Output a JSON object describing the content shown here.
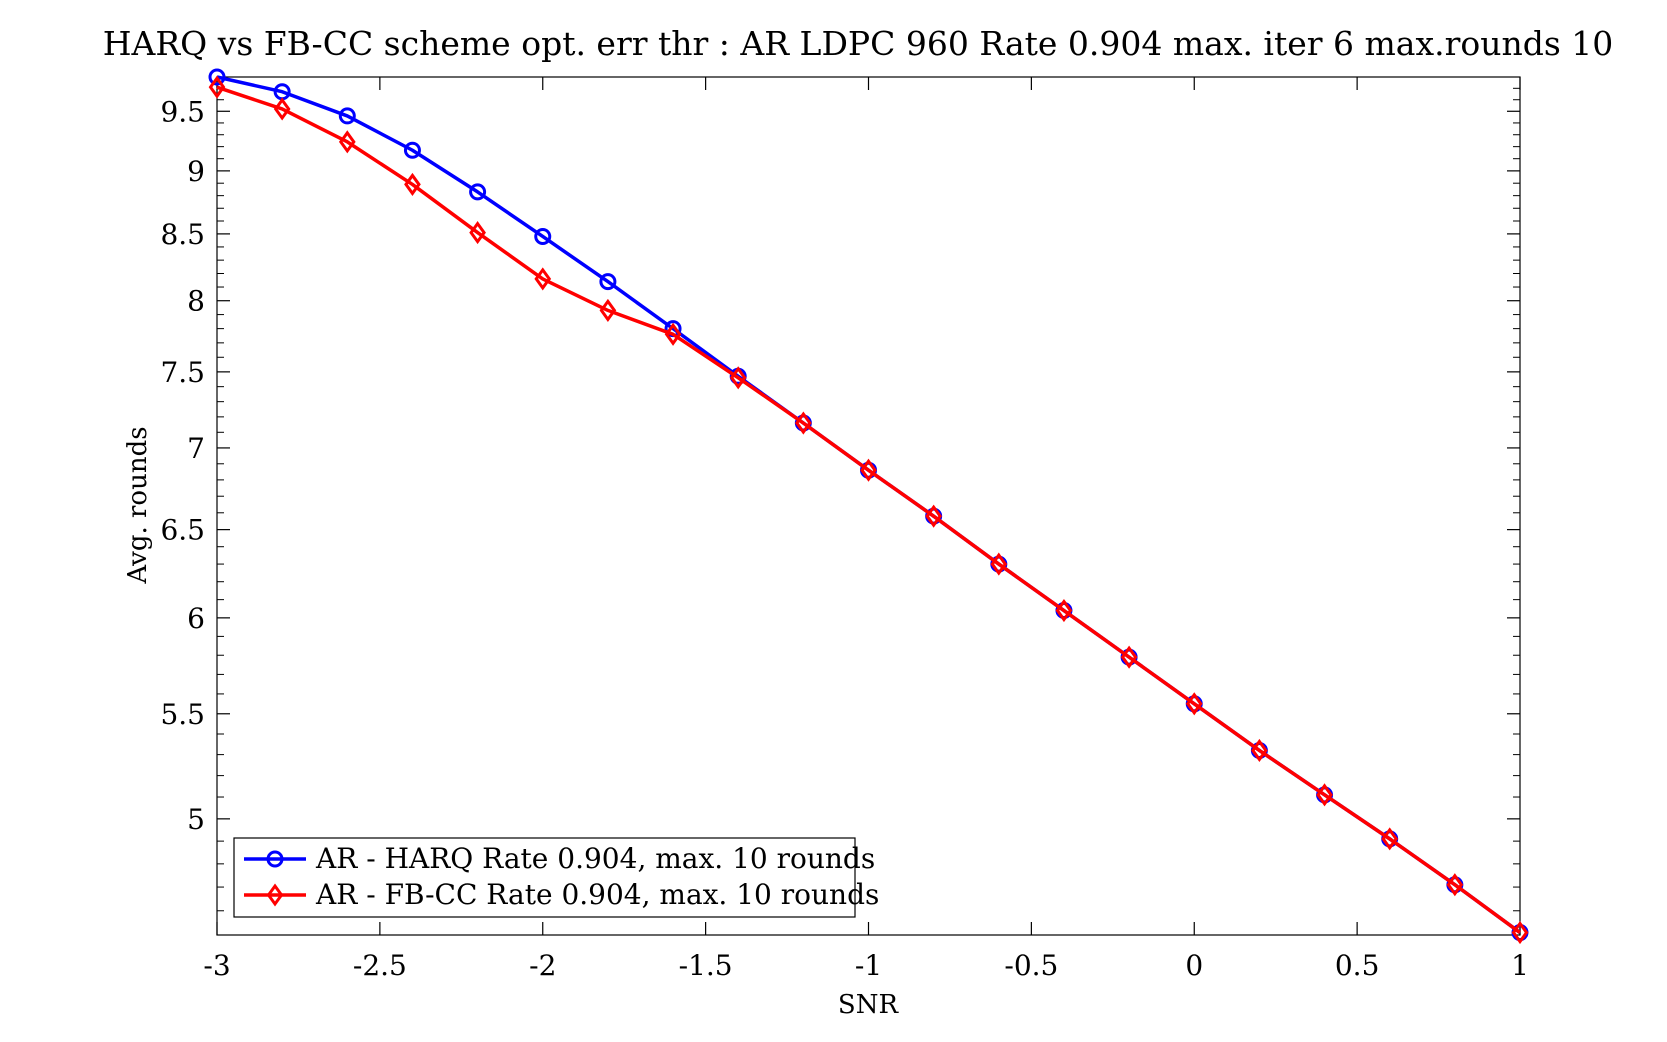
{
  "chart_data": {
    "type": "line",
    "title": "HARQ vs FB-CC scheme opt. err thr : AR LDPC 960 Rate 0.904 max. iter 6 max.rounds 10",
    "xlabel": "SNR",
    "ylabel": "Avg. rounds",
    "xlim": [
      -3,
      1
    ],
    "ylim": [
      4.5,
      9.8
    ],
    "yscale": "log",
    "xticks": [
      -3,
      -2.5,
      -2,
      -1.5,
      -1,
      -0.5,
      0,
      0.5,
      1
    ],
    "xtick_labels": [
      "-3",
      "-2.5",
      "-2",
      "-1.5",
      "-1",
      "-0.5",
      "0",
      "0.5",
      "1"
    ],
    "yticks": [
      5,
      5.5,
      6,
      6.5,
      7,
      7.5,
      8,
      8.5,
      9,
      9.5
    ],
    "ytick_labels": [
      "5",
      "5.5",
      "6",
      "6.5",
      "7",
      "7.5",
      "8",
      "8.5",
      "9",
      "9.5"
    ],
    "legend_position": "bottom-left",
    "grid": false,
    "x": [
      -3,
      -2.8,
      -2.6,
      -2.4,
      -2.2,
      -2,
      -1.8,
      -1.6,
      -1.4,
      -1.2,
      -1,
      -0.8,
      -0.6,
      -0.4,
      -0.2,
      0,
      0.2,
      0.4,
      0.6,
      0.8,
      1
    ],
    "series": [
      {
        "name": "AR - HARQ Rate 0.904, max. 10 rounds",
        "color": "#0000ff",
        "marker": "circle",
        "values": [
          9.8,
          9.67,
          9.46,
          9.17,
          8.83,
          8.48,
          8.14,
          7.8,
          7.47,
          7.16,
          6.86,
          6.58,
          6.3,
          6.04,
          5.79,
          5.55,
          5.32,
          5.11,
          4.91,
          4.71,
          4.51
        ]
      },
      {
        "name": "AR - FB-CC Rate 0.904, max. 10 rounds",
        "color": "#ff0000",
        "marker": "diamond",
        "values": [
          9.71,
          9.52,
          9.24,
          8.89,
          8.51,
          8.16,
          7.93,
          7.76,
          7.46,
          7.16,
          6.86,
          6.58,
          6.3,
          6.04,
          5.79,
          5.55,
          5.32,
          5.11,
          4.91,
          4.71,
          4.51
        ]
      }
    ]
  }
}
